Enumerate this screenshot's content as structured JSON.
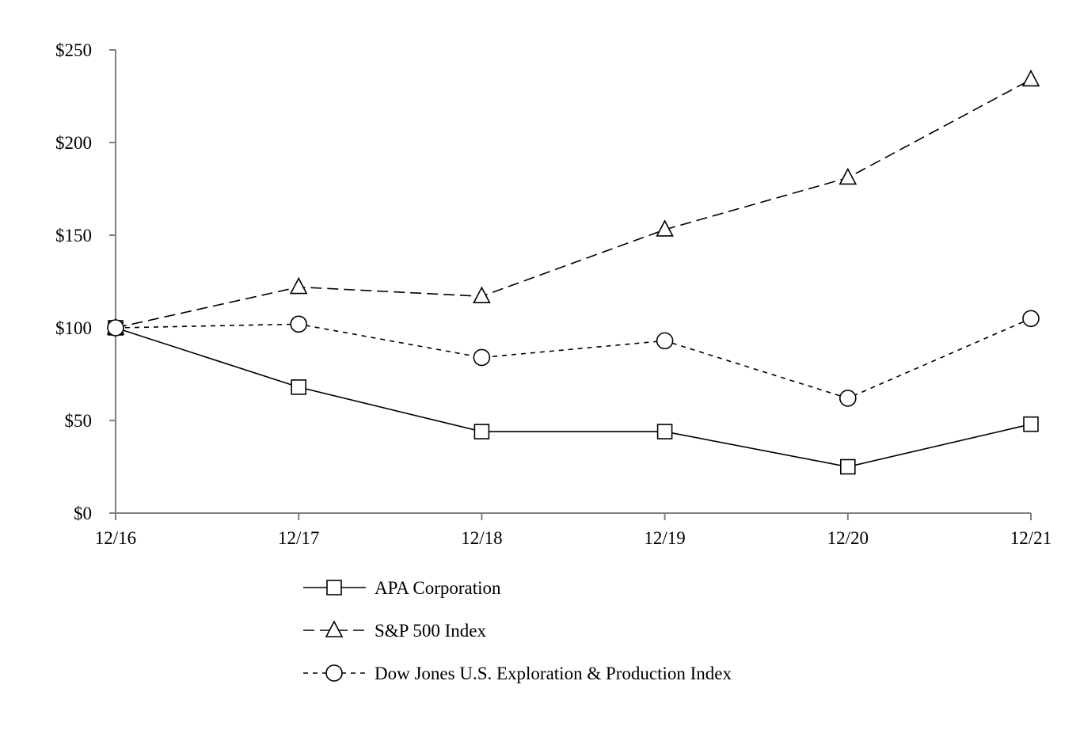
{
  "chart_data": {
    "type": "line",
    "title": "",
    "xlabel": "",
    "ylabel": "",
    "categories": [
      "12/16",
      "12/17",
      "12/18",
      "12/19",
      "12/20",
      "12/21"
    ],
    "ylim": [
      0,
      250
    ],
    "y_ticks": [
      0,
      50,
      100,
      150,
      200,
      250
    ],
    "y_tick_labels": [
      "$0",
      "$50",
      "$100",
      "$150",
      "$200",
      "$250"
    ],
    "grid": false,
    "legend_position": "bottom-center",
    "series": [
      {
        "name": "APA Corporation",
        "marker": "square",
        "line_style": "solid",
        "values": [
          100,
          68,
          44,
          44,
          25,
          48
        ]
      },
      {
        "name": "S&P 500 Index",
        "marker": "triangle",
        "line_style": "long-dash",
        "values": [
          100,
          122,
          117,
          153,
          181,
          234
        ]
      },
      {
        "name": "Dow Jones U.S. Exploration & Production Index",
        "marker": "circle",
        "line_style": "short-dash",
        "values": [
          100,
          102,
          84,
          93,
          62,
          105
        ]
      }
    ]
  }
}
